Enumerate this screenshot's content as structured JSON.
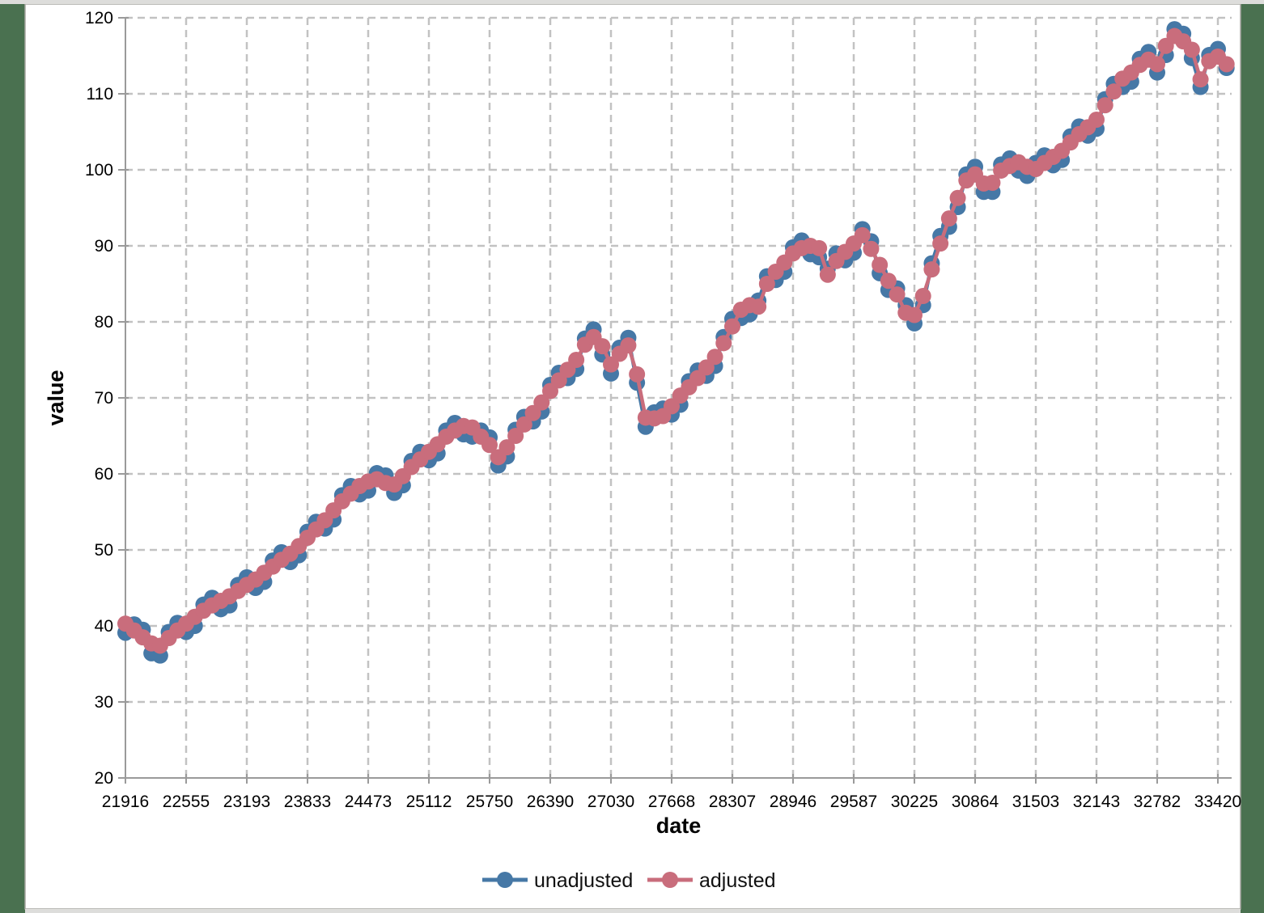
{
  "frame": {
    "background_color": "#4a7150",
    "panel_color": "#ffffff",
    "strip_color": "#dddddb",
    "panel_border_color": "#a6a6a0"
  },
  "chart_data": {
    "type": "line",
    "title": "",
    "xlabel": "date",
    "ylabel": "value",
    "x_tick_labels": [
      "21916",
      "22555",
      "23193",
      "23833",
      "24473",
      "25112",
      "25750",
      "26390",
      "27030",
      "27668",
      "28307",
      "28946",
      "29587",
      "30225",
      "30864",
      "31503",
      "32143",
      "32782",
      "33420"
    ],
    "y_tick_labels": [
      "20",
      "30",
      "40",
      "50",
      "60",
      "70",
      "80",
      "90",
      "100",
      "110",
      "120"
    ],
    "ylim": [
      20,
      120
    ],
    "x_start_serial": 21916,
    "x_tick_step_days": 639,
    "points_per_tick_interval": 7,
    "x_note": "x axis is day-serial dates; data points are quarterly",
    "grid": "dashed",
    "grid_color": "#c2c2c2",
    "axis_color": "#9a9a9a",
    "tick_label_color": "#000000",
    "legend_position": "bottom-center",
    "series": [
      {
        "name": "unadjusted",
        "color": "#4678a6",
        "values": [
          39.1,
          40.2,
          39.5,
          36.4,
          36.1,
          39.2,
          40.4,
          39.2,
          40.0,
          42.8,
          43.7,
          42.2,
          42.7,
          45.4,
          46.4,
          45.0,
          45.8,
          48.6,
          49.7,
          48.4,
          49.3,
          52.4,
          53.7,
          52.8,
          54.0,
          57.2,
          58.4,
          57.3,
          57.8,
          60.1,
          59.8,
          57.5,
          58.5,
          61.7,
          62.9,
          61.8,
          62.7,
          65.7,
          66.7,
          65.2,
          64.9,
          65.7,
          64.8,
          61.1,
          62.3,
          65.8,
          67.5,
          66.9,
          68.2,
          71.7,
          73.3,
          72.6,
          73.8,
          77.8,
          79.0,
          75.7,
          73.2,
          76.6,
          77.9,
          72.0,
          66.2,
          68.1,
          68.6,
          67.8,
          69.1,
          72.2,
          73.6,
          72.9,
          74.2,
          78.0,
          80.4,
          80.5,
          81.0,
          82.8,
          86.0,
          85.5,
          86.6,
          89.8,
          90.7,
          88.9,
          88.5,
          87.0,
          89.0,
          88.1,
          89.1,
          92.2,
          90.6,
          86.4,
          84.2,
          84.4,
          82.2,
          79.8,
          82.2,
          87.7,
          91.3,
          92.5,
          95.1,
          99.4,
          100.4,
          97.1,
          97.1,
          100.7,
          101.5,
          99.9,
          99.2,
          100.9,
          101.9,
          100.6,
          101.3,
          104.4,
          105.7,
          104.5,
          105.4,
          109.3,
          111.3,
          110.9,
          111.6,
          114.6,
          115.5,
          112.8,
          115.1,
          118.5,
          117.9,
          114.7,
          110.9,
          115.1,
          115.9,
          113.4
        ]
      },
      {
        "name": "adjusted",
        "color": "#c96d7c",
        "values": [
          40.3,
          39.4,
          38.5,
          37.7,
          37.4,
          38.4,
          39.4,
          40.3,
          41.2,
          42.0,
          42.7,
          43.3,
          43.9,
          44.6,
          45.4,
          46.1,
          47.0,
          47.8,
          48.7,
          49.5,
          50.5,
          51.6,
          52.7,
          53.9,
          55.2,
          56.4,
          57.4,
          58.4,
          59.0,
          59.3,
          58.8,
          58.6,
          59.7,
          60.9,
          61.9,
          62.9,
          63.9,
          64.9,
          65.7,
          66.3,
          66.1,
          64.9,
          63.8,
          62.2,
          63.5,
          65.0,
          66.5,
          68.0,
          69.4,
          70.9,
          72.3,
          73.7,
          75.0,
          77.0,
          78.0,
          76.8,
          74.4,
          75.8,
          76.9,
          73.1,
          67.4,
          67.3,
          67.6,
          68.9,
          70.3,
          71.4,
          72.6,
          74.0,
          75.4,
          77.2,
          79.4,
          81.6,
          82.2,
          82.0,
          85.0,
          86.6,
          87.8,
          89.0,
          89.7,
          90.0,
          89.7,
          86.2,
          88.0,
          89.2,
          90.3,
          91.4,
          89.6,
          87.5,
          85.4,
          83.6,
          81.2,
          80.9,
          83.4,
          86.9,
          90.3,
          93.6,
          96.3,
          98.6,
          99.4,
          98.2,
          98.3,
          99.9,
          100.5,
          101.0,
          100.4,
          100.1,
          100.9,
          101.7,
          102.5,
          103.6,
          104.7,
          105.6,
          106.6,
          108.5,
          110.3,
          112.0,
          112.8,
          113.8,
          114.5,
          113.9,
          116.3,
          117.6,
          116.9,
          115.8,
          111.9,
          114.3,
          114.9,
          113.9
        ]
      }
    ]
  }
}
